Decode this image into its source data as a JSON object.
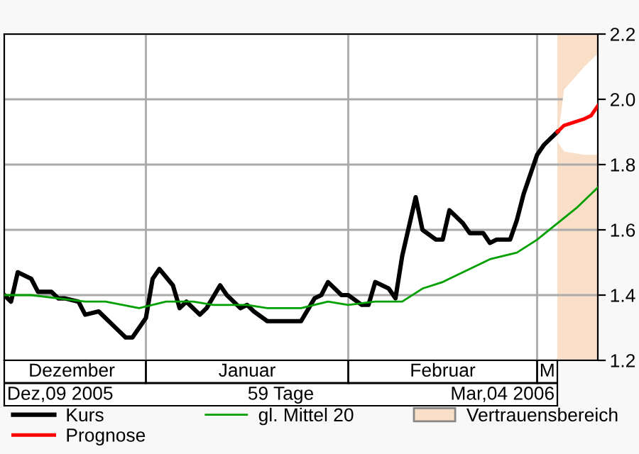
{
  "chart_data": {
    "type": "line",
    "xlim": [
      "2005-12-10",
      "2006-03-08"
    ],
    "xticks": [
      {
        "value": "2005-12-20",
        "label": "Dezember"
      },
      {
        "value": "2006-01-15",
        "label": "Januar"
      },
      {
        "value": "2006-02-13",
        "label": "Februar"
      },
      {
        "value": "2006-02-28T12:00",
        "label": "M"
      }
    ],
    "ylim": [
      1.2,
      2.2
    ],
    "yticks": [
      1.2,
      1.4,
      1.6,
      1.8,
      {
        "value": 2.0,
        "label": "2.0"
      },
      2.2
    ],
    "grid": "y",
    "legend": "bottom",
    "ref_lines": [
      {
        "axis": "x",
        "value": "2005-12-31",
        "label": null,
        "color": "#aaaaaa"
      },
      {
        "axis": "x",
        "value": "2006-01-30",
        "label": null,
        "color": "#aaaaaa"
      },
      {
        "axis": "x",
        "value": "2006-02-27",
        "label": null,
        "color": "#aaaaaa"
      }
    ],
    "bands": [
      {
        "axis": "x",
        "from": "2006-03-02",
        "to": "2006-03-08",
        "label": "Vertrauensbereich",
        "color": "#fadfc8"
      }
    ],
    "annotations": [
      "Dez,09 2005",
      "59 Tage",
      "Mar,04 2006"
    ],
    "series": [
      {
        "name": "Kurs",
        "color": "#000000",
        "x": [
          "2005-12-10",
          "2005-12-11",
          "2005-12-12",
          "2005-12-14",
          "2005-12-15",
          "2005-12-17",
          "2005-12-18",
          "2005-12-19",
          "2005-12-21",
          "2005-12-22",
          "2005-12-24",
          "2005-12-25",
          "2005-12-27",
          "2005-12-28",
          "2005-12-29",
          "2005-12-31",
          "2006-01-01",
          "2006-01-02",
          "2006-01-04",
          "2006-01-05",
          "2006-01-06",
          "2006-01-08",
          "2006-01-09",
          "2006-01-11",
          "2006-01-12",
          "2006-01-14",
          "2006-01-15",
          "2006-01-16",
          "2006-01-18",
          "2006-01-23",
          "2006-01-25",
          "2006-01-26",
          "2006-01-27",
          "2006-01-29",
          "2006-01-30",
          "2006-02-01",
          "2006-02-02",
          "2006-02-03",
          "2006-02-05",
          "2006-02-06",
          "2006-02-07",
          "2006-02-09",
          "2006-02-10",
          "2006-02-12",
          "2006-02-13",
          "2006-02-14",
          "2006-02-16",
          "2006-02-17",
          "2006-02-19",
          "2006-02-20",
          "2006-02-21",
          "2006-02-23",
          "2006-02-24",
          "2006-02-25",
          "2006-02-27",
          "2006-02-28",
          "2006-03-02"
        ],
        "values": [
          1.4,
          1.38,
          1.47,
          1.45,
          1.41,
          1.41,
          1.39,
          1.39,
          1.38,
          1.34,
          1.35,
          1.33,
          1.29,
          1.27,
          1.27,
          1.33,
          1.45,
          1.48,
          1.43,
          1.36,
          1.38,
          1.34,
          1.36,
          1.43,
          1.4,
          1.36,
          1.37,
          1.35,
          1.32,
          1.32,
          1.39,
          1.4,
          1.44,
          1.4,
          1.4,
          1.37,
          1.37,
          1.44,
          1.42,
          1.39,
          1.52,
          1.7,
          1.6,
          1.57,
          1.57,
          1.66,
          1.62,
          1.59,
          1.59,
          1.56,
          1.57,
          1.57,
          1.63,
          1.71,
          1.83,
          1.86,
          1.9
        ]
      },
      {
        "name": "Prognose",
        "color": "#ff0000",
        "x": [
          "2006-03-02",
          "2006-03-03",
          "2006-03-06",
          "2006-03-07",
          "2006-03-08"
        ],
        "values": [
          1.9,
          1.92,
          1.94,
          1.95,
          1.98
        ],
        "lower": [
          1.87,
          1.84,
          1.83,
          1.83,
          1.83
        ],
        "upper": [
          1.87,
          2.03,
          2.1,
          2.12,
          2.14
        ]
      },
      {
        "name": "gl. Mittel 20",
        "color": "#00a000",
        "x": [
          "2005-12-10",
          "2005-12-12",
          "2005-12-14",
          "2005-12-18",
          "2005-12-22",
          "2005-12-25",
          "2005-12-30",
          "2006-01-03",
          "2006-01-07",
          "2006-01-10",
          "2006-01-15",
          "2006-01-18",
          "2006-01-23",
          "2006-01-27",
          "2006-01-30",
          "2006-02-03",
          "2006-02-07",
          "2006-02-10",
          "2006-02-13",
          "2006-02-16",
          "2006-02-20",
          "2006-02-24",
          "2006-02-27",
          "2006-03-02",
          "2006-03-05",
          "2006-03-07",
          "2006-03-08"
        ],
        "values": [
          1.4,
          1.4,
          1.4,
          1.39,
          1.38,
          1.38,
          1.36,
          1.38,
          1.38,
          1.37,
          1.37,
          1.36,
          1.36,
          1.38,
          1.37,
          1.38,
          1.38,
          1.42,
          1.44,
          1.47,
          1.51,
          1.53,
          1.57,
          1.62,
          1.67,
          1.71,
          1.73
        ]
      }
    ]
  }
}
